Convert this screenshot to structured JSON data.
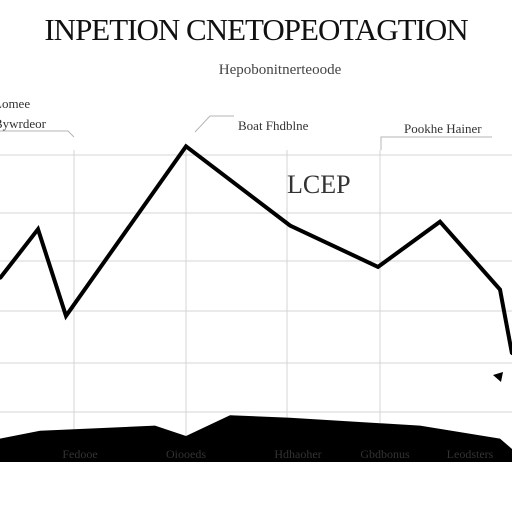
{
  "chart_data": {
    "type": "line",
    "title": "INPETION CNETOPEOTAGTION",
    "subtitle": "Hepobonitnerteoode",
    "annotations": [
      {
        "text": "Lomee",
        "text2": "Bywrdeor"
      },
      {
        "text": "Boat Fhdblne"
      },
      {
        "text": "LCEP"
      },
      {
        "text": "Pookhe Hainer"
      }
    ],
    "x": [
      0,
      1,
      2,
      3,
      4,
      5,
      6,
      7,
      8
    ],
    "categories": [
      "Fedooe",
      "Oiooeds",
      "Hdhaoher",
      "Gbdbonus",
      "Leodsters"
    ],
    "series": [
      {
        "type": "line",
        "color": "#000000",
        "values": [
          57,
          70,
          47,
          92,
          71,
          60,
          72,
          54,
          37
        ]
      },
      {
        "type": "area",
        "color": "#000000",
        "values": [
          9,
          12,
          14,
          10,
          18,
          17,
          14,
          9,
          5
        ]
      }
    ],
    "ylim": [
      0,
      100
    ],
    "grid": true,
    "line_color": "#000000",
    "grid_color": "#d4d4d4"
  }
}
